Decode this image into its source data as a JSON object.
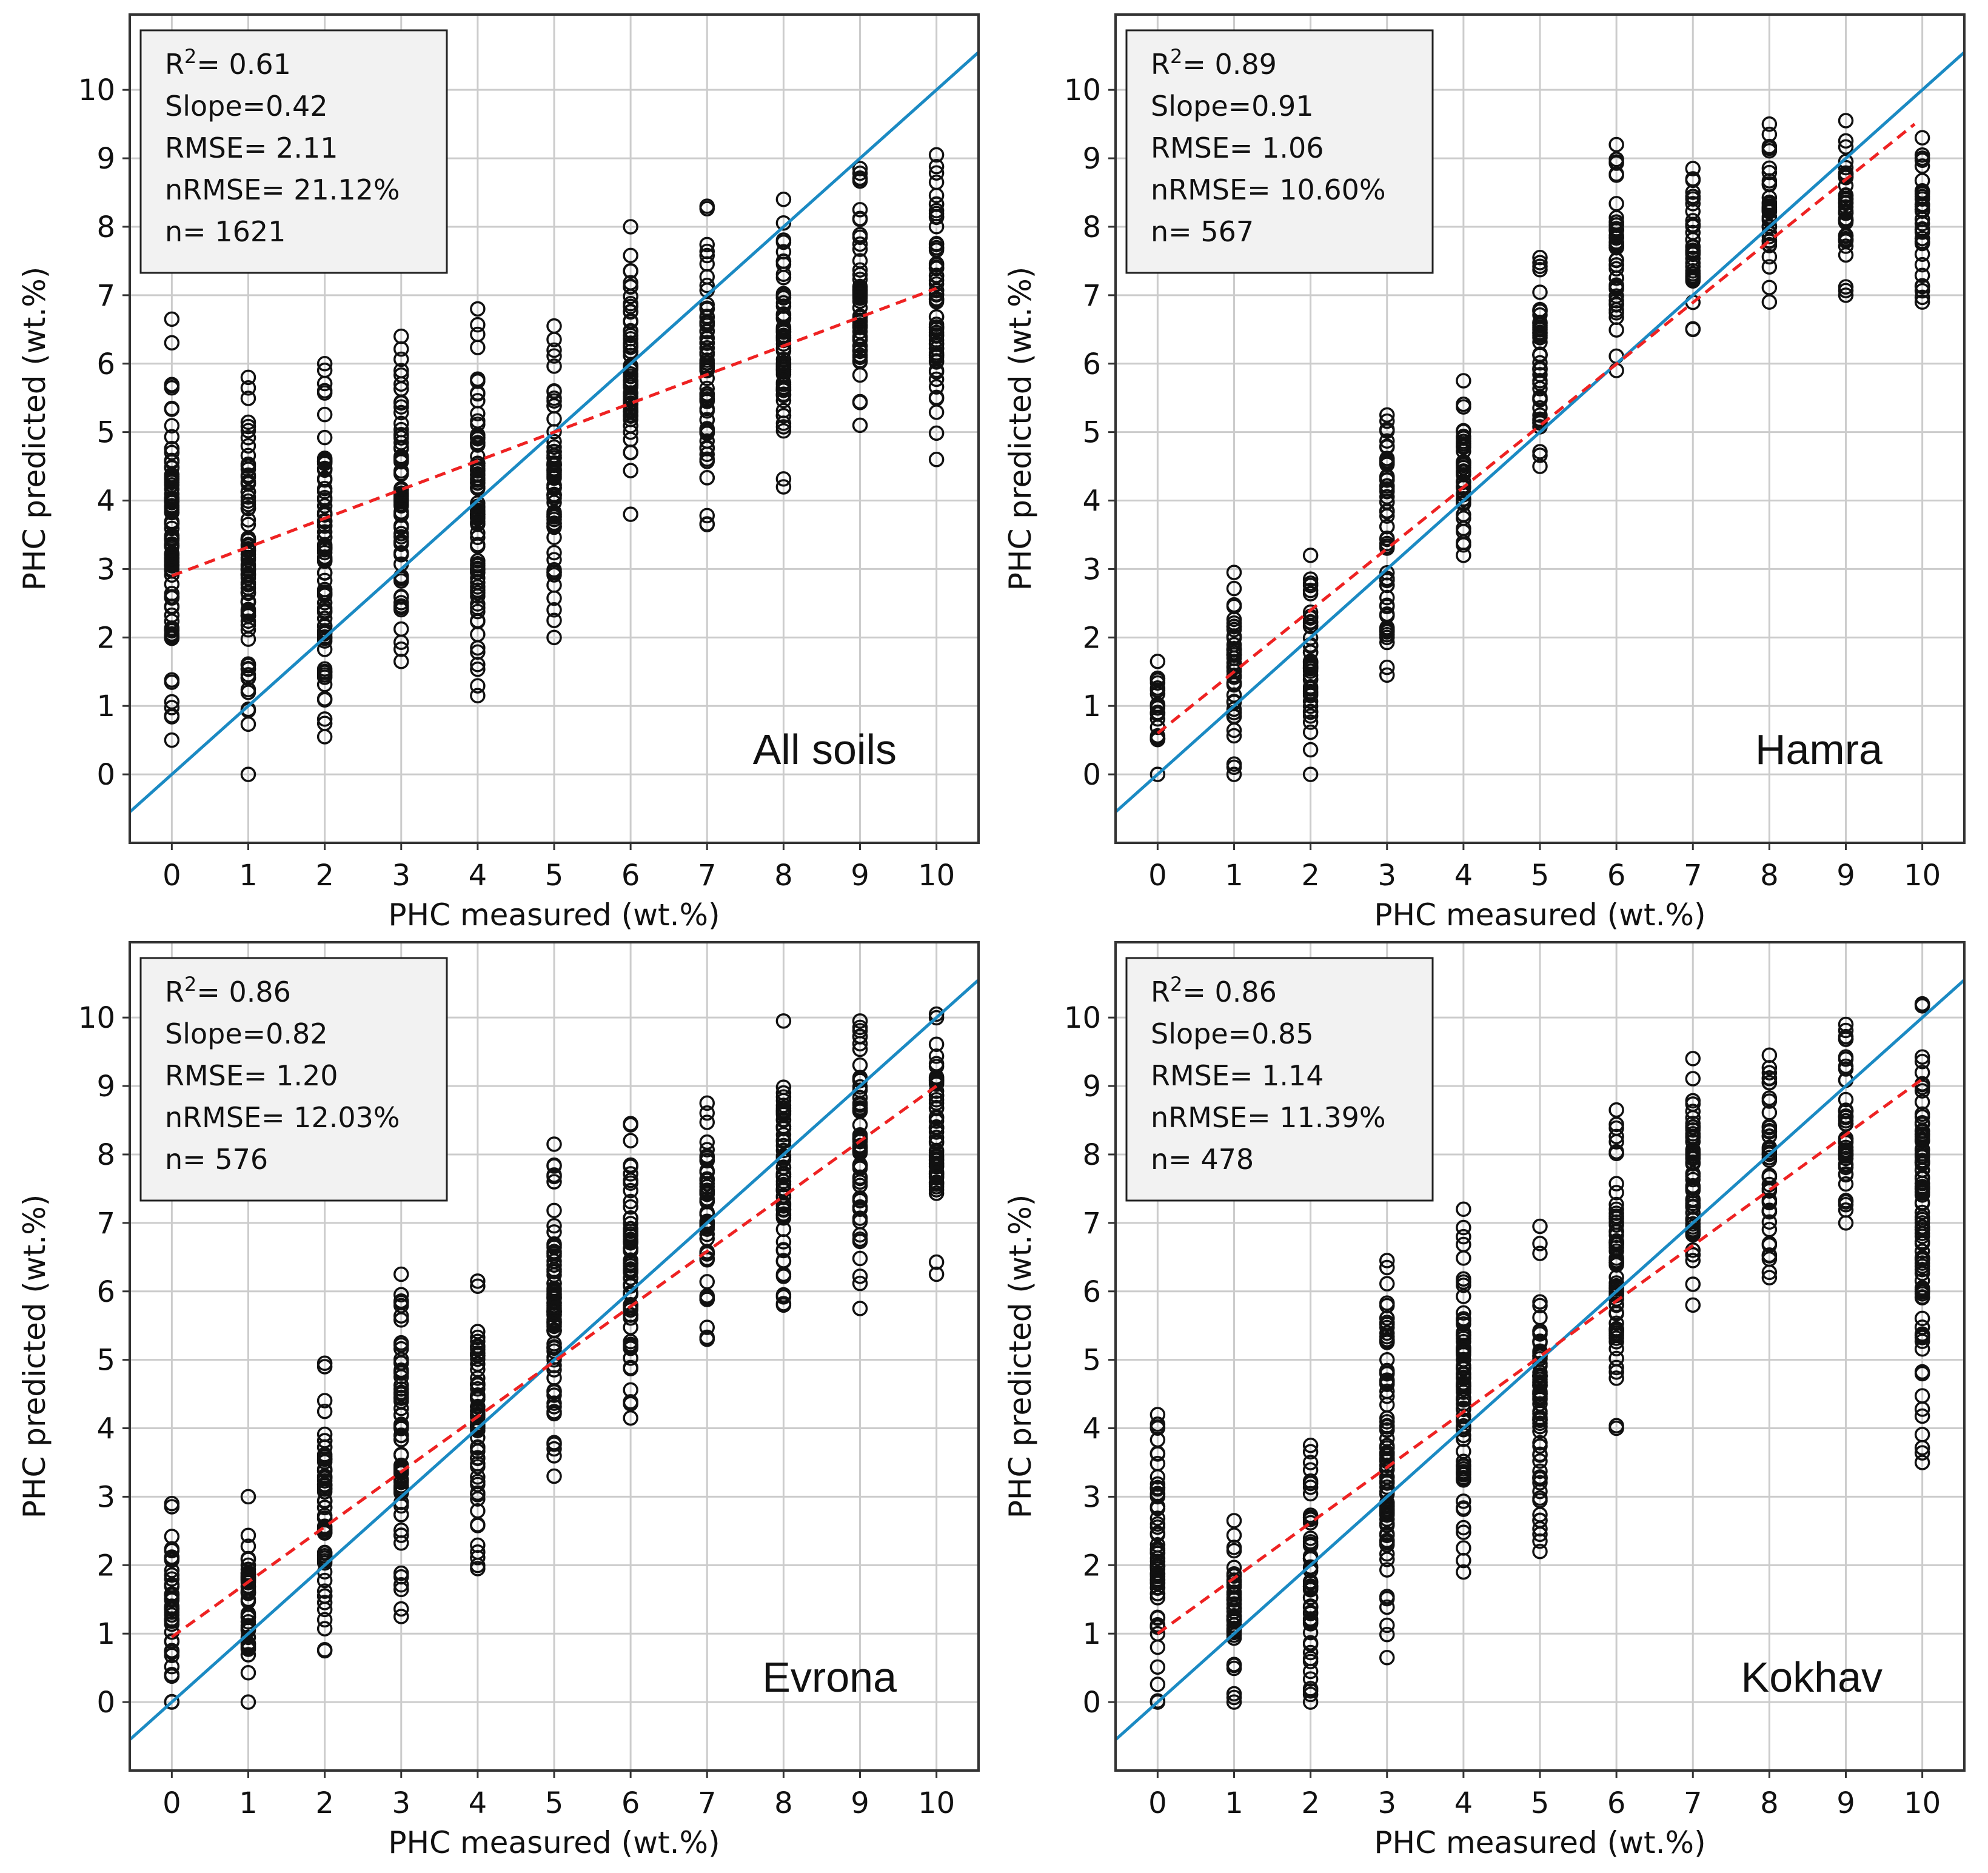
{
  "chart_data": [
    {
      "type": "scatter",
      "panel_label": "All soils",
      "xlabel": "PHC measured (wt.%)",
      "ylabel": "PHC predicted (wt.%)",
      "xticks": [
        "0",
        "1",
        "2",
        "3",
        "4",
        "5",
        "6",
        "7",
        "8",
        "9",
        "10"
      ],
      "yticks": [
        "0",
        "1",
        "2",
        "3",
        "4",
        "5",
        "6",
        "7",
        "8",
        "9",
        "10"
      ],
      "xlim": [
        -0.55,
        10.55
      ],
      "ylim": [
        -1.0,
        11.1
      ],
      "grid": true,
      "stats": {
        "r2": "R<sup>2</sup>= 0.61",
        "slope": "Slope=0.42",
        "rmse": "RMSE= 2.11",
        "nrmse": "nRMSE= 21.12%",
        "n": "n= 1621"
      },
      "identity_line": {
        "x": [
          -0.55,
          10.55
        ],
        "y": [
          -0.55,
          10.55
        ]
      },
      "fit_line": {
        "x": [
          0,
          10
        ],
        "y": [
          2.9,
          7.1
        ]
      },
      "point_columns": [
        {
          "x": 0,
          "min": 0.5,
          "max": 6.65
        },
        {
          "x": 1,
          "min": 0.0,
          "max": 5.8
        },
        {
          "x": 2,
          "min": 0.55,
          "max": 6.0
        },
        {
          "x": 3,
          "min": 1.65,
          "max": 6.4
        },
        {
          "x": 4,
          "min": 1.15,
          "max": 6.8
        },
        {
          "x": 5,
          "min": 2.0,
          "max": 6.55
        },
        {
          "x": 6,
          "min": 3.8,
          "max": 8.0
        },
        {
          "x": 7,
          "min": 3.65,
          "max": 8.3
        },
        {
          "x": 8,
          "min": 4.2,
          "max": 8.4
        },
        {
          "x": 9,
          "min": 5.1,
          "max": 8.85
        },
        {
          "x": 10,
          "min": 4.6,
          "max": 9.05
        }
      ]
    },
    {
      "type": "scatter",
      "panel_label": "Hamra",
      "xlabel": "PHC measured (wt.%)",
      "ylabel": "PHC predicted (wt.%)",
      "xticks": [
        "0",
        "1",
        "2",
        "3",
        "4",
        "5",
        "6",
        "7",
        "8",
        "9",
        "10"
      ],
      "yticks": [
        "0",
        "1",
        "2",
        "3",
        "4",
        "5",
        "6",
        "7",
        "8",
        "9",
        "10"
      ],
      "xlim": [
        -0.55,
        10.55
      ],
      "ylim": [
        -1.0,
        11.1
      ],
      "grid": true,
      "stats": {
        "r2": "R<sup>2</sup>= 0.89",
        "slope": "Slope=0.91",
        "rmse": "RMSE= 1.06",
        "nrmse": "nRMSE= 10.60%",
        "n": "n= 567"
      },
      "identity_line": {
        "x": [
          -0.55,
          10.55
        ],
        "y": [
          -0.55,
          10.55
        ]
      },
      "fit_line": {
        "x": [
          0,
          9.9
        ],
        "y": [
          0.6,
          9.5
        ]
      },
      "point_columns": [
        {
          "x": 0,
          "min": 0.0,
          "max": 1.65
        },
        {
          "x": 1,
          "min": 0.0,
          "max": 2.95
        },
        {
          "x": 2,
          "min": 0.0,
          "max": 3.2
        },
        {
          "x": 3,
          "min": 1.45,
          "max": 5.25
        },
        {
          "x": 4,
          "min": 3.2,
          "max": 5.75
        },
        {
          "x": 5,
          "min": 4.5,
          "max": 7.55
        },
        {
          "x": 6,
          "min": 5.9,
          "max": 9.2
        },
        {
          "x": 7,
          "min": 6.5,
          "max": 8.85
        },
        {
          "x": 8,
          "min": 6.9,
          "max": 9.5
        },
        {
          "x": 9,
          "min": 7.0,
          "max": 9.55
        },
        {
          "x": 10,
          "min": 6.9,
          "max": 9.3
        }
      ]
    },
    {
      "type": "scatter",
      "panel_label": "Evrona",
      "xlabel": "PHC measured (wt.%)",
      "ylabel": "PHC predicted (wt.%)",
      "xticks": [
        "0",
        "1",
        "2",
        "3",
        "4",
        "5",
        "6",
        "7",
        "8",
        "9",
        "10"
      ],
      "yticks": [
        "0",
        "1",
        "2",
        "3",
        "4",
        "5",
        "6",
        "7",
        "8",
        "9",
        "10"
      ],
      "xlim": [
        -0.55,
        10.55
      ],
      "ylim": [
        -1.0,
        11.1
      ],
      "grid": true,
      "stats": {
        "r2": "R<sup>2</sup>= 0.86",
        "slope": "Slope=0.82",
        "rmse": "RMSE= 1.20",
        "nrmse": "nRMSE= 12.03%",
        "n": "n= 576"
      },
      "identity_line": {
        "x": [
          -0.55,
          10.55
        ],
        "y": [
          -0.55,
          10.55
        ]
      },
      "fit_line": {
        "x": [
          0,
          10
        ],
        "y": [
          0.95,
          9.0
        ]
      },
      "point_columns": [
        {
          "x": 0,
          "min": 0.0,
          "max": 2.9
        },
        {
          "x": 1,
          "min": 0.0,
          "max": 3.0
        },
        {
          "x": 2,
          "min": 0.75,
          "max": 4.95
        },
        {
          "x": 3,
          "min": 1.25,
          "max": 6.25
        },
        {
          "x": 4,
          "min": 1.95,
          "max": 6.15
        },
        {
          "x": 5,
          "min": 3.3,
          "max": 8.15
        },
        {
          "x": 6,
          "min": 4.15,
          "max": 8.45
        },
        {
          "x": 7,
          "min": 5.3,
          "max": 8.75
        },
        {
          "x": 8,
          "min": 5.8,
          "max": 9.95
        },
        {
          "x": 9,
          "min": 5.75,
          "max": 9.95
        },
        {
          "x": 10,
          "min": 6.25,
          "max": 10.05
        }
      ]
    },
    {
      "type": "scatter",
      "panel_label": "Kokhav",
      "xlabel": "PHC measured (wt.%)",
      "ylabel": "PHC predicted (wt.%)",
      "xticks": [
        "0",
        "1",
        "2",
        "3",
        "4",
        "5",
        "6",
        "7",
        "8",
        "9",
        "10"
      ],
      "yticks": [
        "0",
        "1",
        "2",
        "3",
        "4",
        "5",
        "6",
        "7",
        "8",
        "9",
        "10"
      ],
      "xlim": [
        -0.55,
        10.55
      ],
      "ylim": [
        -1.0,
        11.1
      ],
      "grid": true,
      "stats": {
        "r2": "R<sup>2</sup>= 0.86",
        "slope": "Slope=0.85",
        "rmse": "RMSE= 1.14",
        "nrmse": "nRMSE= 11.39%",
        "n": "n= 478"
      },
      "identity_line": {
        "x": [
          -0.55,
          10.55
        ],
        "y": [
          -0.55,
          10.55
        ]
      },
      "fit_line": {
        "x": [
          0,
          10
        ],
        "y": [
          1.0,
          9.1
        ]
      },
      "point_columns": [
        {
          "x": 0,
          "min": 0.0,
          "max": 4.2
        },
        {
          "x": 1,
          "min": 0.0,
          "max": 2.65
        },
        {
          "x": 2,
          "min": 0.0,
          "max": 3.75
        },
        {
          "x": 3,
          "min": 0.65,
          "max": 6.45
        },
        {
          "x": 4,
          "min": 1.9,
          "max": 7.2
        },
        {
          "x": 5,
          "min": 2.2,
          "max": 6.95
        },
        {
          "x": 6,
          "min": 4.0,
          "max": 8.65
        },
        {
          "x": 7,
          "min": 5.8,
          "max": 9.4
        },
        {
          "x": 8,
          "min": 6.2,
          "max": 9.45
        },
        {
          "x": 9,
          "min": 7.0,
          "max": 9.9
        },
        {
          "x": 10,
          "min": 3.5,
          "max": 10.2
        }
      ]
    }
  ]
}
